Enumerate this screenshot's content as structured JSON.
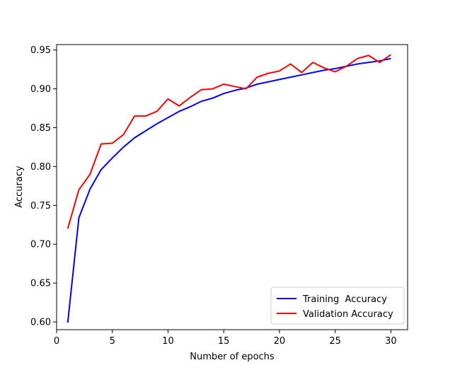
{
  "chart_data": {
    "type": "line",
    "title": "",
    "xlabel": "Number of epochs",
    "ylabel": "Accuracy",
    "xlim": [
      0,
      31.5
    ],
    "ylim": [
      0.59,
      0.957
    ],
    "x_ticks": [
      0,
      5,
      10,
      15,
      20,
      25,
      30
    ],
    "y_ticks": [
      "0.60",
      "0.65",
      "0.70",
      "0.75",
      "0.80",
      "0.85",
      "0.90",
      "0.95"
    ],
    "grid": false,
    "legend_position": "lower-right",
    "x": [
      1,
      2,
      3,
      4,
      5,
      6,
      7,
      8,
      9,
      10,
      11,
      12,
      13,
      14,
      15,
      16,
      17,
      18,
      19,
      20,
      21,
      22,
      23,
      24,
      25,
      26,
      27,
      28,
      29,
      30
    ],
    "series": [
      {
        "name": "Training  Accuracy",
        "color": "#0000ff",
        "values": [
          0.599,
          0.734,
          0.771,
          0.796,
          0.811,
          0.825,
          0.837,
          0.846,
          0.855,
          0.863,
          0.871,
          0.877,
          0.884,
          0.888,
          0.894,
          0.898,
          0.901,
          0.906,
          0.909,
          0.912,
          0.915,
          0.918,
          0.921,
          0.924,
          0.926,
          0.929,
          0.932,
          0.934,
          0.936,
          0.939
        ]
      },
      {
        "name": "Validation Accuracy",
        "color": "#ff0000",
        "values": [
          0.72,
          0.77,
          0.79,
          0.829,
          0.83,
          0.841,
          0.865,
          0.865,
          0.871,
          0.887,
          0.878,
          0.889,
          0.899,
          0.9,
          0.906,
          0.903,
          0.9,
          0.915,
          0.92,
          0.923,
          0.932,
          0.921,
          0.934,
          0.927,
          0.922,
          0.929,
          0.939,
          0.943,
          0.934,
          0.944
        ]
      }
    ]
  }
}
